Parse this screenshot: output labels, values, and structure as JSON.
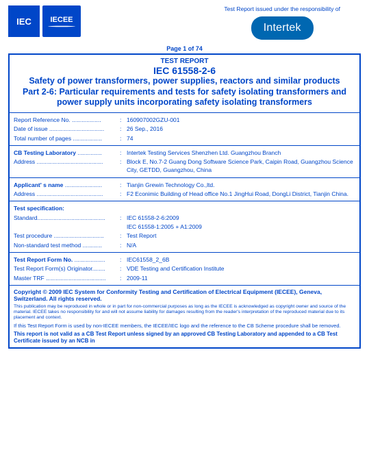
{
  "header": {
    "logo1": "IEC",
    "logo2": "IECEE",
    "responsibility": "Test Report issued under the responsibility of",
    "company": "Intertek"
  },
  "pageLine": "Page 1 of 74",
  "title": {
    "tr": "TEST REPORT",
    "std": "IEC 61558-2-6",
    "desc": "Safety of power transformers, power supplies, reactors and similar products",
    "part": "Part 2-6: Particular requirements and tests for safety isolating transformers and power supply units incorporating safety isolating transformers"
  },
  "sec1": {
    "refLabel": "Report Reference No. ..................",
    "refVal": "160907002GZU-001",
    "dateLabel": "Date of issue ..................................",
    "dateVal": "26 Sep., 2016",
    "pagesLabel": "Total number of pages ..................",
    "pagesVal": "74"
  },
  "sec2": {
    "labLabel": "CB Testing Laboratory",
    "labDots": " ...............",
    "labVal": "Intertek Testing Services Shenzhen Ltd. Guangzhou Branch",
    "addrLabel": "Address .........................................",
    "addrVal": "Block E, No.7-2 Guang Dong Software Science Park, Caipin Road, Guangzhou Science City, GETDD, Guangzhou, China"
  },
  "sec3": {
    "appLabel": "Applicant' s name",
    "appDots": " .......................",
    "appVal": "Tianjin Grewin Technology Co.,ltd.",
    "addrLabel": "Address .........................................",
    "addrVal": "F2 Econimic Building of Head office No.1 JingHui Road, DongLi District, Tianjin China."
  },
  "sec4": {
    "heading": "Test specification:",
    "stdLabel": "Standard..........................................",
    "stdVal1": "IEC 61558-2-6:2009",
    "stdVal2": "IEC 61558-1:2005 + A1:2009",
    "procLabel": "Test procedure ...............................",
    "procVal": "Test Report",
    "nsmLabel": "Non-standard test method  ............",
    "nsmVal": "N/A"
  },
  "sec5": {
    "formLabel": "Test Report Form No.",
    "formDots": " ...................",
    "formVal": "IEC61558_2_6B",
    "origLabel": "Test Report Form(s) Originator........",
    "origVal": "VDE Testing and Certification Institute",
    "mtrfLabel": "Master TRF .....................................",
    "mtrfVal": "2009-11"
  },
  "copyright": {
    "line1": "Copyright © 2009 IEC System for Conformity Testing and Certification of Electrical Equipment (IECEE), Geneva, Switzerland. All rights reserved.",
    "fine": "This publication may be reproduced in whole or in part for non-commercial purposes as long as the IECEE is acknowledged as copyright owner and source of the material. IECEE takes no responsibility for and will not assume liability for damages resulting from the reader's interpretation of the reproduced material due to its placement and context.",
    "note": "If this Test Report Form is used by non-IECEE members, the IECEE/IEC logo and the reference to the CB Scheme procedure shall be removed.",
    "final": "This report is not valid as a CB Test Report unless signed by an approved CB Testing Laboratory and appended to a CB Test Certificate issued by an NCB in"
  }
}
